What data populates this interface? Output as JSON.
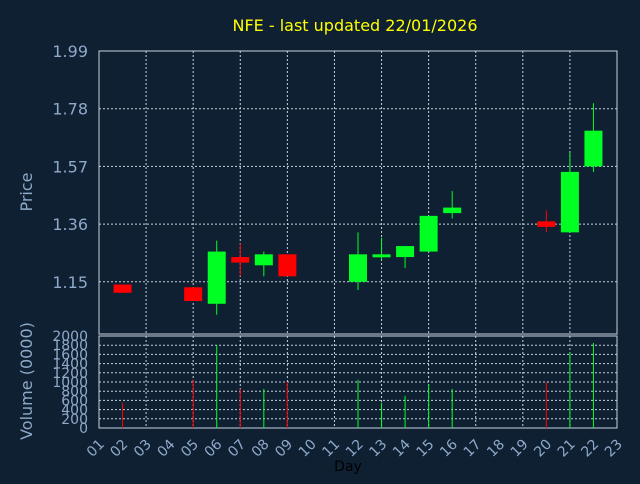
{
  "chart_data": {
    "type": "candlestick",
    "title": "NFE - last updated 22/01/2026",
    "xlabel": "Day",
    "ylabel_price": "Price",
    "ylabel_volume": "Volume (0000)",
    "grid": true,
    "price_ticks": [
      "1.15",
      "1.36",
      "1.57",
      "1.78",
      "1.99"
    ],
    "price_tick_values": [
      1.15,
      1.36,
      1.57,
      1.78,
      1.99
    ],
    "price_ylim": [
      0.96,
      1.99
    ],
    "volume_ticks": [
      "0",
      "200",
      "400",
      "600",
      "800",
      "1000",
      "1200",
      "1400",
      "1600",
      "1800",
      "2000"
    ],
    "volume_ylim": [
      0,
      2000
    ],
    "x_ticks": [
      "01",
      "02",
      "03",
      "04",
      "05",
      "06",
      "07",
      "08",
      "09",
      "10",
      "11",
      "12",
      "13",
      "14",
      "15",
      "16",
      "17",
      "18",
      "19",
      "20",
      "21",
      "22",
      "23"
    ],
    "candles": [
      {
        "day": 2,
        "open": 1.14,
        "close": 1.11,
        "high": 1.14,
        "low": 1.11,
        "volume": 550
      },
      {
        "day": 5,
        "open": 1.13,
        "close": 1.08,
        "high": 1.13,
        "low": 1.08,
        "volume": 1050
      },
      {
        "day": 6,
        "open": 1.07,
        "close": 1.26,
        "high": 1.3,
        "low": 1.03,
        "volume": 1800
      },
      {
        "day": 7,
        "open": 1.24,
        "close": 1.22,
        "high": 1.29,
        "low": 1.17,
        "volume": 850
      },
      {
        "day": 8,
        "open": 1.21,
        "close": 1.25,
        "high": 1.26,
        "low": 1.17,
        "volume": 850
      },
      {
        "day": 9,
        "open": 1.25,
        "close": 1.17,
        "high": 1.25,
        "low": 1.17,
        "volume": 1000
      },
      {
        "day": 12,
        "open": 1.15,
        "close": 1.25,
        "high": 1.33,
        "low": 1.12,
        "volume": 1050
      },
      {
        "day": 13,
        "open": 1.24,
        "close": 1.25,
        "high": 1.31,
        "low": 1.23,
        "volume": 550
      },
      {
        "day": 14,
        "open": 1.24,
        "close": 1.28,
        "high": 1.28,
        "low": 1.2,
        "volume": 700
      },
      {
        "day": 15,
        "open": 1.26,
        "close": 1.39,
        "high": 1.39,
        "low": 1.26,
        "volume": 950
      },
      {
        "day": 16,
        "open": 1.4,
        "close": 1.42,
        "high": 1.48,
        "low": 1.38,
        "volume": 850
      },
      {
        "day": 20,
        "open": 1.37,
        "close": 1.35,
        "high": 1.41,
        "low": 1.33,
        "volume": 1000
      },
      {
        "day": 21,
        "open": 1.33,
        "close": 1.55,
        "high": 1.62,
        "low": 1.33,
        "volume": 1650
      },
      {
        "day": 22,
        "open": 1.57,
        "close": 1.7,
        "high": 1.8,
        "low": 1.55,
        "volume": 1850
      }
    ]
  },
  "colors": {
    "background": "#0f2033",
    "axis_text": "#8fa9c9",
    "title": "#ffff00",
    "grid": "#c8d2dc",
    "up": "#00ff22",
    "down": "#ff0000",
    "xlabel": "#000000"
  }
}
